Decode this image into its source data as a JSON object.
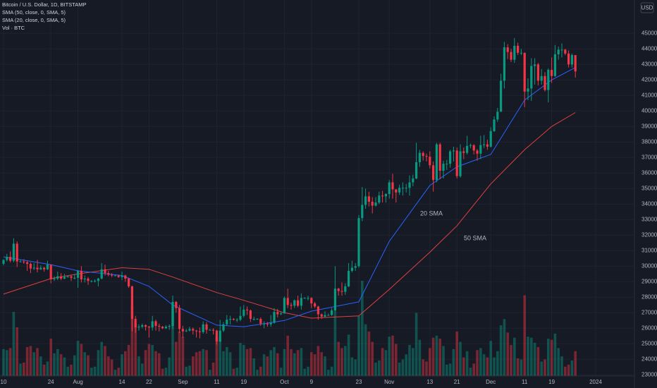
{
  "chart_data": {
    "type": "candlestick",
    "title": "Bitcoin / U.S. Dollar, 1D, BITSTAMP",
    "volume_label": "Vol · BTC",
    "currency": "USD",
    "up_color": "#089981",
    "down_color": "#f23645",
    "grid": true,
    "ylim": [
      22150,
      47150
    ],
    "yticks": [
      23000,
      24000,
      25000,
      26000,
      27000,
      28000,
      29000,
      30000,
      31000,
      32000,
      33000,
      34000,
      35000,
      36000,
      37000,
      38000,
      39000,
      40000,
      41000,
      42000,
      43000,
      44000,
      45000
    ],
    "xticks": [
      {
        "value": "Jul 10",
        "label": "10"
      },
      {
        "value": "Jul 24",
        "label": "24"
      },
      {
        "value": "Aug 1",
        "label": "Aug"
      },
      {
        "value": "Aug 14",
        "label": "14"
      },
      {
        "value": "Aug 22",
        "label": "22"
      },
      {
        "value": "Sep 1",
        "label": "Sep"
      },
      {
        "value": "Sep 11",
        "label": "11"
      },
      {
        "value": "Sep 19",
        "label": "19"
      },
      {
        "value": "Oct 1",
        "label": "Oct"
      },
      {
        "value": "Oct 9",
        "label": "9"
      },
      {
        "value": "Oct 23",
        "label": "23"
      },
      {
        "value": "Nov 1",
        "label": "Nov"
      },
      {
        "value": "Nov 13",
        "label": "13"
      },
      {
        "value": "Nov 21",
        "label": "21"
      },
      {
        "value": "Dec 1",
        "label": "Dec"
      },
      {
        "value": "Dec 11",
        "label": "11"
      },
      {
        "value": "Dec 19",
        "label": "19"
      },
      {
        "value": "Jan 1",
        "label": "2024"
      }
    ],
    "x": [
      "Jul 10",
      "Jul 11",
      "Jul 12",
      "Jul 13",
      "Jul 14",
      "Jul 15",
      "Jul 16",
      "Jul 17",
      "Jul 18",
      "Jul 19",
      "Jul 20",
      "Jul 21",
      "Jul 22",
      "Jul 23",
      "Jul 24",
      "Jul 25",
      "Jul 26",
      "Jul 27",
      "Jul 28",
      "Jul 29",
      "Jul 30",
      "Jul 31",
      "Aug 1",
      "Aug 2",
      "Aug 3",
      "Aug 4",
      "Aug 5",
      "Aug 6",
      "Aug 7",
      "Aug 8",
      "Aug 9",
      "Aug 10",
      "Aug 11",
      "Aug 12",
      "Aug 13",
      "Aug 14",
      "Aug 15",
      "Aug 16",
      "Aug 17",
      "Aug 18",
      "Aug 19",
      "Aug 20",
      "Aug 21",
      "Aug 22",
      "Aug 23",
      "Aug 24",
      "Aug 25",
      "Aug 26",
      "Aug 27",
      "Aug 28",
      "Aug 29",
      "Aug 30",
      "Aug 31",
      "Sep 1",
      "Sep 2",
      "Sep 3",
      "Sep 4",
      "Sep 5",
      "Sep 6",
      "Sep 7",
      "Sep 8",
      "Sep 9",
      "Sep 10",
      "Sep 11",
      "Sep 12",
      "Sep 13",
      "Sep 14",
      "Sep 15",
      "Sep 16",
      "Sep 17",
      "Sep 18",
      "Sep 19",
      "Sep 20",
      "Sep 21",
      "Sep 22",
      "Sep 23",
      "Sep 24",
      "Sep 25",
      "Sep 26",
      "Sep 27",
      "Sep 28",
      "Sep 29",
      "Sep 30",
      "Oct 1",
      "Oct 2",
      "Oct 3",
      "Oct 4",
      "Oct 5",
      "Oct 6",
      "Oct 7",
      "Oct 8",
      "Oct 9",
      "Oct 10",
      "Oct 11",
      "Oct 12",
      "Oct 13",
      "Oct 14",
      "Oct 15",
      "Oct 16",
      "Oct 17",
      "Oct 18",
      "Oct 19",
      "Oct 20",
      "Oct 21",
      "Oct 22",
      "Oct 23",
      "Oct 24",
      "Oct 25",
      "Oct 26",
      "Oct 27",
      "Oct 28",
      "Oct 29",
      "Oct 30",
      "Oct 31",
      "Nov 1",
      "Nov 2",
      "Nov 3",
      "Nov 4",
      "Nov 5",
      "Nov 6",
      "Nov 7",
      "Nov 8",
      "Nov 9",
      "Nov 10",
      "Nov 11",
      "Nov 12",
      "Nov 13",
      "Nov 14",
      "Nov 15",
      "Nov 16",
      "Nov 17",
      "Nov 18",
      "Nov 19",
      "Nov 20",
      "Nov 21",
      "Nov 22",
      "Nov 23",
      "Nov 24",
      "Nov 25",
      "Nov 26",
      "Nov 27",
      "Nov 28",
      "Nov 29",
      "Nov 30",
      "Dec 1",
      "Dec 2",
      "Dec 3",
      "Dec 4",
      "Dec 5",
      "Dec 6",
      "Dec 7",
      "Dec 8",
      "Dec 9",
      "Dec 10",
      "Dec 11",
      "Dec 12",
      "Dec 13",
      "Dec 14",
      "Dec 15",
      "Dec 16",
      "Dec 17",
      "Dec 18",
      "Dec 19",
      "Dec 20",
      "Dec 21",
      "Dec 22",
      "Dec 23",
      "Dec 24",
      "Dec 25",
      "Dec 26"
    ],
    "open": [
      30150,
      30400,
      30600,
      30350,
      31450,
      30300,
      30300,
      30250,
      30150,
      29850,
      29900,
      29800,
      29900,
      29800,
      30100,
      29150,
      29200,
      29350,
      29200,
      29300,
      29350,
      29250,
      29250,
      29700,
      29150,
      29200,
      29050,
      29050,
      29050,
      29200,
      29800,
      29550,
      29450,
      29400,
      29400,
      29300,
      29400,
      29200,
      28700,
      26600,
      26050,
      26100,
      26200,
      26100,
      26050,
      26450,
      26150,
      26100,
      26000,
      26100,
      26150,
      27700,
      27300,
      25950,
      25800,
      25850,
      25950,
      25850,
      25800,
      25750,
      26250,
      25900,
      25900,
      25850,
      25150,
      25850,
      26250,
      26550,
      26600,
      26550,
      26550,
      26800,
      27200,
      27150,
      26600,
      26600,
      26600,
      26300,
      26300,
      26250,
      26350,
      27050,
      26900,
      26950,
      27950,
      27500,
      27450,
      27800,
      27450,
      27950,
      27950,
      27950,
      27600,
      27400,
      26900,
      26750,
      26850,
      26850,
      27150,
      28550,
      28400,
      28350,
      28700,
      29700,
      29900,
      30000,
      33100,
      33950,
      34500,
      34150,
      33900,
      34100,
      34550,
      34500,
      34650,
      35400,
      34950,
      34750,
      35050,
      35050,
      35050,
      35400,
      35650,
      36700,
      37300,
      37100,
      37050,
      36500,
      35550,
      37850,
      36150,
      36600,
      36600,
      37400,
      37450,
      35800,
      37400,
      37300,
      37750,
      37800,
      37450,
      37250,
      37800,
      37850,
      37700,
      38700,
      39450,
      39950,
      41950,
      44100,
      43800,
      43300,
      44200,
      43750,
      43750,
      41250,
      41450,
      42900,
      43000,
      41950,
      42250,
      41350,
      42650,
      42250,
      43650,
      43950,
      43950,
      43700,
      43000,
      43600
    ],
    "high": [
      30450,
      30800,
      30950,
      31800,
      31600,
      30400,
      30450,
      30350,
      30250,
      30200,
      30400,
      30050,
      29950,
      30350,
      30100,
      29350,
      29650,
      29550,
      29500,
      29400,
      29450,
      29500,
      29750,
      30000,
      29400,
      29300,
      29100,
      29150,
      29250,
      30200,
      30100,
      29700,
      29550,
      29450,
      29450,
      29650,
      29450,
      29250,
      28750,
      26800,
      26250,
      26300,
      26250,
      26150,
      26800,
      26550,
      26300,
      26150,
      26200,
      26250,
      28100,
      27750,
      27500,
      26150,
      25950,
      26100,
      26050,
      25900,
      26050,
      26450,
      26400,
      25950,
      26000,
      25900,
      26550,
      26400,
      26850,
      26800,
      26650,
      26650,
      27400,
      27500,
      27400,
      27200,
      26750,
      26650,
      26700,
      26450,
      26400,
      26850,
      27300,
      27250,
      27050,
      28050,
      28550,
      27650,
      27850,
      28100,
      28250,
      28000,
      28100,
      28000,
      27700,
      27450,
      26950,
      27100,
      26950,
      27300,
      30000,
      28600,
      28950,
      28900,
      30200,
      30350,
      30200,
      33300,
      35100,
      35000,
      34800,
      34450,
      34450,
      34800,
      34850,
      34700,
      35550,
      35950,
      34950,
      35250,
      35400,
      35300,
      35850,
      35900,
      37950,
      37500,
      37400,
      37250,
      37400,
      36750,
      37950,
      37950,
      36800,
      36850,
      37500,
      37700,
      37650,
      37850,
      37650,
      38400,
      37900,
      37850,
      37550,
      38400,
      38450,
      38150,
      38950,
      39650,
      40200,
      42400,
      44450,
      44300,
      44000,
      44700,
      44400,
      44000,
      43750,
      42100,
      43400,
      43400,
      43100,
      42700,
      42500,
      42750,
      43450,
      44250,
      44150,
      44350,
      44000,
      43900,
      43700,
      43600
    ],
    "low": [
      30050,
      30300,
      30250,
      30250,
      29950,
      30250,
      30150,
      29700,
      29550,
      29750,
      29600,
      29750,
      29650,
      29750,
      28900,
      29050,
      29100,
      29100,
      29150,
      29250,
      29050,
      29150,
      28600,
      28950,
      28950,
      28800,
      28950,
      28950,
      28700,
      29150,
      29400,
      29350,
      29300,
      29350,
      29250,
      29100,
      29000,
      28600,
      25800,
      25700,
      25850,
      26000,
      25850,
      25400,
      25850,
      25850,
      25800,
      25950,
      25950,
      25900,
      25950,
      27000,
      25700,
      25400,
      25750,
      25800,
      25600,
      25400,
      25350,
      25650,
      25650,
      25850,
      25600,
      24950,
      25100,
      25750,
      26150,
      26250,
      26500,
      26400,
      26450,
      26700,
      26850,
      26400,
      26500,
      26550,
      26150,
      26000,
      26100,
      26100,
      26300,
      26700,
      26850,
      26950,
      27300,
      27200,
      27300,
      27350,
      27200,
      27900,
      27800,
      27300,
      27300,
      26550,
      26600,
      26700,
      26800,
      26800,
      27100,
      28100,
      28100,
      28150,
      28650,
      29600,
      29700,
      29900,
      32900,
      33700,
      33850,
      33400,
      33850,
      34000,
      34100,
      34100,
      34350,
      34350,
      34100,
      34600,
      34550,
      34750,
      34550,
      35150,
      35600,
      36400,
      36800,
      36750,
      36300,
      34800,
      35400,
      35600,
      35650,
      36200,
      36350,
      36750,
      35650,
      35700,
      36900,
      37200,
      37600,
      37200,
      36800,
      36900,
      37600,
      37500,
      37650,
      38650,
      39300,
      39950,
      41450,
      43350,
      43150,
      43100,
      43600,
      43600,
      40250,
      40700,
      40650,
      41700,
      41650,
      41700,
      41250,
      40550,
      41800,
      42200,
      43300,
      43450,
      43600,
      42800,
      42800,
      42150
    ],
    "close": [
      30400,
      30600,
      30350,
      31450,
      30300,
      30300,
      30250,
      30150,
      29850,
      29900,
      29800,
      29900,
      29800,
      30100,
      29150,
      29200,
      29350,
      29200,
      29300,
      29350,
      29250,
      29250,
      29700,
      29150,
      29200,
      29050,
      29050,
      29050,
      29200,
      29800,
      29550,
      29450,
      29400,
      29400,
      29300,
      29400,
      29200,
      28700,
      26600,
      26050,
      26100,
      26200,
      26100,
      26050,
      26450,
      26150,
      26100,
      26000,
      26100,
      26150,
      27700,
      27300,
      25950,
      25800,
      25850,
      25950,
      25850,
      25800,
      25750,
      26250,
      25900,
      25900,
      25850,
      25150,
      25850,
      26250,
      26550,
      26600,
      26550,
      26550,
      26800,
      27200,
      27150,
      26600,
      26600,
      26600,
      26300,
      26300,
      26250,
      26350,
      27050,
      26900,
      26950,
      27950,
      27500,
      27450,
      27800,
      27450,
      27950,
      27950,
      27950,
      27600,
      27400,
      26900,
      26750,
      26850,
      26850,
      27150,
      28550,
      28400,
      28350,
      28700,
      29700,
      29900,
      30000,
      33100,
      33950,
      34500,
      34150,
      33900,
      34100,
      34550,
      34500,
      34650,
      35400,
      34950,
      34750,
      35050,
      35050,
      35050,
      35400,
      35650,
      36700,
      37300,
      37100,
      37050,
      36500,
      35550,
      37850,
      36150,
      36600,
      36600,
      37400,
      37450,
      35800,
      37400,
      37300,
      37750,
      37800,
      37450,
      37250,
      37800,
      37850,
      37700,
      38700,
      39450,
      39950,
      41950,
      44100,
      43800,
      43300,
      44200,
      43750,
      43750,
      41250,
      41450,
      42900,
      43000,
      41950,
      42250,
      41350,
      42650,
      42250,
      43650,
      43950,
      43950,
      43700,
      43000,
      43600,
      42550
    ],
    "volume": [
      2600,
      2500,
      2700,
      6200,
      4700,
      1200,
      1300,
      2800,
      2900,
      2300,
      2700,
      1900,
      1100,
      1400,
      3600,
      2200,
      2600,
      2100,
      1800,
      900,
      1100,
      2000,
      3400,
      3100,
      2300,
      2000,
      800,
      900,
      2500,
      3300,
      2900,
      1900,
      1600,
      600,
      800,
      2100,
      2400,
      3000,
      6800,
      5100,
      1900,
      1200,
      2500,
      3100,
      3000,
      2400,
      2200,
      700,
      800,
      1800,
      7000,
      3300,
      4300,
      3800,
      900,
      1000,
      1900,
      2300,
      2400,
      2600,
      2500,
      600,
      1300,
      3800,
      3600,
      2400,
      2800,
      2300,
      700,
      800,
      3200,
      3000,
      2600,
      2700,
      1700,
      600,
      900,
      2100,
      1900,
      2500,
      2800,
      2200,
      800,
      2600,
      3900,
      2600,
      2200,
      2500,
      2700,
      700,
      900,
      2300,
      2100,
      2900,
      2300,
      1900,
      600,
      900,
      6300,
      3300,
      2700,
      2900,
      4000,
      1800,
      1600,
      5800,
      9200,
      5000,
      4300,
      3300,
      1300,
      1500,
      2700,
      2500,
      3800,
      3900,
      3100,
      1300,
      1600,
      2100,
      3000,
      2700,
      6100,
      3500,
      1600,
      1400,
      2700,
      3700,
      3900,
      3600,
      2900,
      1100,
      1200,
      2600,
      4300,
      3300,
      1800,
      2400,
      800,
      1200,
      2500,
      2700,
      2100,
      1800,
      3400,
      1800,
      2400,
      4900,
      5500,
      4200,
      3000,
      3700,
      1700,
      1600,
      7800,
      3800,
      3700,
      3200,
      2800,
      1400,
      1600,
      3600,
      3500,
      4100,
      2700,
      1900,
      900,
      1100,
      1500,
      2400
    ],
    "overlays": [
      {
        "name": "SMA (50, close, 0, SMA, 5)",
        "label": "50 SMA",
        "color": "#e0403f",
        "x": [
          "Jul 10",
          "Jul 24",
          "Aug 1",
          "Aug 14",
          "Aug 22",
          "Aug 29",
          "Sep 11",
          "Sep 19",
          "Oct 1",
          "Oct 9",
          "Oct 23",
          "Nov 1",
          "Nov 13",
          "Nov 21",
          "Dec 1",
          "Dec 11",
          "Dec 19",
          "Dec 26"
        ],
        "values": [
          28200,
          29200,
          29500,
          29900,
          29800,
          29300,
          28300,
          27800,
          27000,
          26650,
          26800,
          28500,
          30900,
          32600,
          35300,
          37500,
          39000,
          39900
        ]
      },
      {
        "name": "SMA (20, close, 0, SMA, 5)",
        "label": "20 SMA",
        "color": "#2962ff",
        "x": [
          "Jul 10",
          "Jul 24",
          "Aug 1",
          "Aug 14",
          "Aug 22",
          "Aug 29",
          "Sep 11",
          "Sep 19",
          "Oct 1",
          "Oct 9",
          "Oct 23",
          "Nov 1",
          "Nov 13",
          "Nov 21",
          "Dec 1",
          "Dec 11",
          "Dec 19",
          "Dec 26"
        ],
        "values": [
          30600,
          30100,
          29700,
          29400,
          28700,
          27500,
          26200,
          26100,
          26500,
          27100,
          27700,
          31600,
          35200,
          36400,
          37200,
          40700,
          42000,
          42800
        ]
      }
    ]
  }
}
